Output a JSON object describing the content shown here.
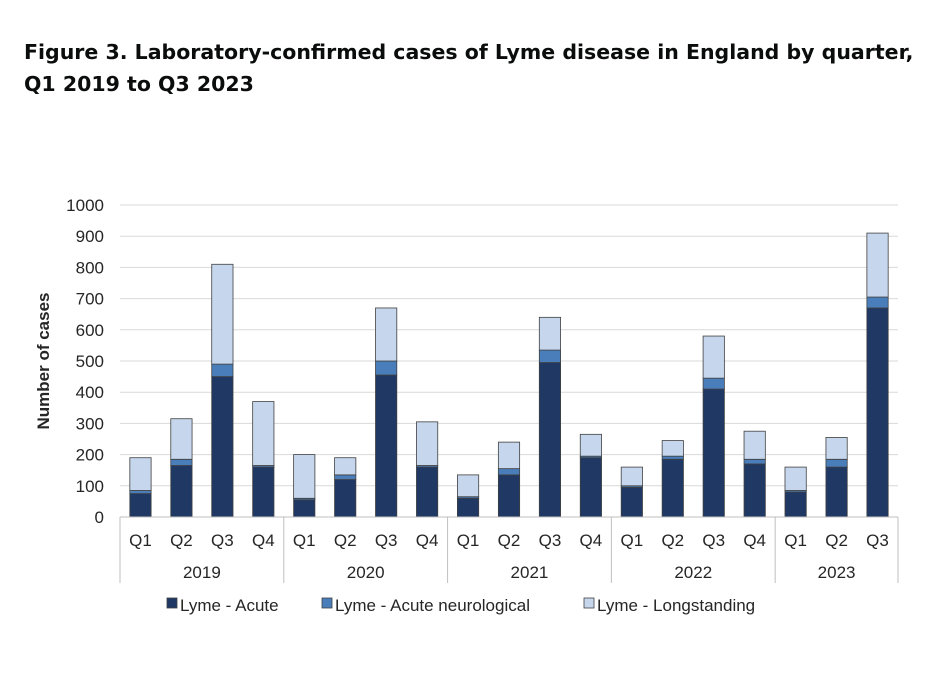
{
  "title": "Figure 3. Laboratory-confirmed cases of Lyme disease in England by quarter, Q1 2019 to Q3 2023",
  "chart_data": {
    "type": "bar",
    "stacked": true,
    "ylabel": "Number of cases",
    "ylim": [
      0,
      1000
    ],
    "yticks": [
      0,
      100,
      200,
      300,
      400,
      500,
      600,
      700,
      800,
      900,
      1000
    ],
    "grid": true,
    "legend_position": "bottom",
    "categories": [
      "Q1",
      "Q2",
      "Q3",
      "Q4",
      "Q1",
      "Q2",
      "Q3",
      "Q4",
      "Q1",
      "Q2",
      "Q3",
      "Q4",
      "Q1",
      "Q2",
      "Q3",
      "Q4",
      "Q1",
      "Q2",
      "Q3"
    ],
    "groups": [
      {
        "label": "2019",
        "count": 4
      },
      {
        "label": "2020",
        "count": 4
      },
      {
        "label": "2021",
        "count": 4
      },
      {
        "label": "2022",
        "count": 4
      },
      {
        "label": "2023",
        "count": 3
      }
    ],
    "series": [
      {
        "name": "Lyme - Acute",
        "color": "#1f3864",
        "values": [
          75,
          165,
          450,
          160,
          55,
          120,
          455,
          160,
          60,
          135,
          495,
          190,
          95,
          185,
          410,
          170,
          80,
          160,
          670
        ]
      },
      {
        "name": "Lyme - Acute neurological",
        "color": "#4a7ebb",
        "values": [
          10,
          20,
          40,
          5,
          5,
          15,
          45,
          5,
          5,
          20,
          40,
          5,
          5,
          10,
          35,
          15,
          5,
          25,
          35
        ]
      },
      {
        "name": "Lyme - Longstanding",
        "color": "#c5d6ed",
        "values": [
          105,
          130,
          320,
          205,
          140,
          55,
          170,
          140,
          70,
          85,
          105,
          70,
          60,
          50,
          135,
          90,
          75,
          70,
          205
        ]
      }
    ]
  }
}
